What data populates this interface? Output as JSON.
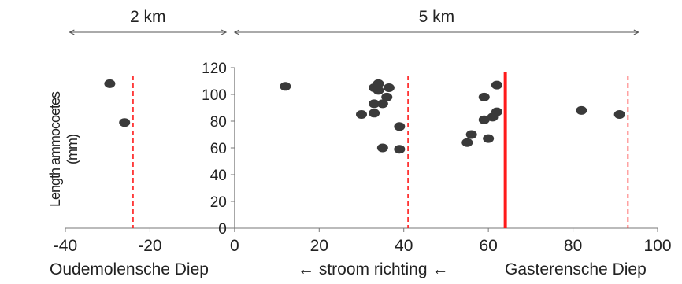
{
  "chart_data": {
    "type": "scatter",
    "ylabel_line1": "Length ammocoetes",
    "ylabel_line2": "(mm)",
    "xlim": [
      -40,
      100
    ],
    "ylim": [
      0,
      120
    ],
    "xticks": [
      -40,
      -20,
      0,
      20,
      40,
      60,
      80,
      100
    ],
    "yticks": [
      0,
      20,
      40,
      60,
      80,
      100,
      120
    ],
    "points": [
      {
        "x": -29.5,
        "y": 108
      },
      {
        "x": -26,
        "y": 79
      },
      {
        "x": 12,
        "y": 106
      },
      {
        "x": 30,
        "y": 85
      },
      {
        "x": 33,
        "y": 86
      },
      {
        "x": 33,
        "y": 93
      },
      {
        "x": 33,
        "y": 105
      },
      {
        "x": 34,
        "y": 108
      },
      {
        "x": 34,
        "y": 103
      },
      {
        "x": 35,
        "y": 93
      },
      {
        "x": 35,
        "y": 60
      },
      {
        "x": 36,
        "y": 98
      },
      {
        "x": 36.5,
        "y": 105
      },
      {
        "x": 39,
        "y": 59
      },
      {
        "x": 39,
        "y": 76
      },
      {
        "x": 55,
        "y": 64
      },
      {
        "x": 56,
        "y": 70
      },
      {
        "x": 59,
        "y": 98
      },
      {
        "x": 59,
        "y": 81
      },
      {
        "x": 60,
        "y": 67
      },
      {
        "x": 61,
        "y": 83
      },
      {
        "x": 62,
        "y": 87
      },
      {
        "x": 62,
        "y": 107
      },
      {
        "x": 82,
        "y": 88
      },
      {
        "x": 91,
        "y": 85
      }
    ],
    "dashed_lines_x": [
      -24,
      41,
      93
    ],
    "solid_line_x": 64,
    "line_color": "#ff1a1a",
    "marker_color": "#3a3a3a",
    "spans": [
      {
        "label": "2 km",
        "from": -39,
        "to": -2
      },
      {
        "label": "5 km",
        "from": 0,
        "to": 95.5
      }
    ],
    "bottom_labels": {
      "left": "Oudemolensche Diep",
      "center": "← stroom richting ←",
      "right": "Gasterensche Diep"
    },
    "grid": false
  }
}
